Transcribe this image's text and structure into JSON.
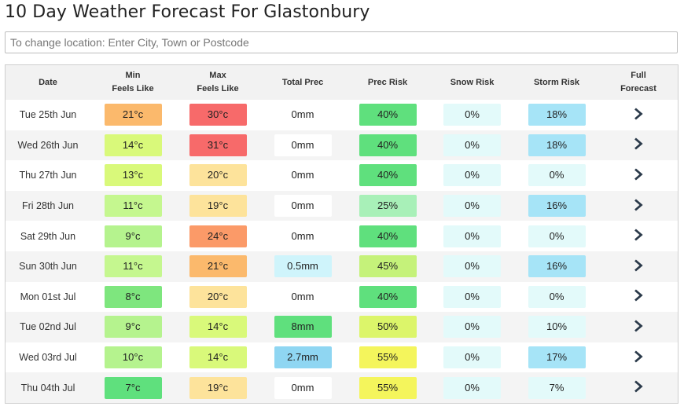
{
  "title": "10 Day Weather Forecast For Glastonbury",
  "search": {
    "placeholder": "To change location: Enter City, Town or Postcode"
  },
  "headers": {
    "date": "Date",
    "min_line1": "Min",
    "min_line2": "Feels Like",
    "max_line1": "Max",
    "max_line2": "Feels Like",
    "total_prec": "Total Prec",
    "prec_risk": "Prec Risk",
    "snow_risk": "Snow Risk",
    "storm_risk": "Storm Risk",
    "full_line1": "Full",
    "full_line2": "Forecast"
  },
  "rows": [
    {
      "date": "Tue 25th Jun",
      "min": "21°c",
      "min_color": "#fbb96c",
      "max": "30°c",
      "max_color": "#f76a6a",
      "prec": "0mm",
      "prec_color": "#ffffff",
      "prec_risk": "40%",
      "prec_risk_color": "#5fe07d",
      "snow": "0%",
      "snow_color": "#e3fafa",
      "storm": "18%",
      "storm_color": "#a6e4f7",
      "link_icon": "chevron-right-icon"
    },
    {
      "date": "Wed 26th Jun",
      "min": "14°c",
      "min_color": "#d9f97a",
      "max": "31°c",
      "max_color": "#f76a6a",
      "prec": "0mm",
      "prec_color": "#ffffff",
      "prec_risk": "40%",
      "prec_risk_color": "#5fe07d",
      "snow": "0%",
      "snow_color": "#e3fafa",
      "storm": "18%",
      "storm_color": "#a6e4f7",
      "link_icon": "chevron-right-icon"
    },
    {
      "date": "Thu 27th Jun",
      "min": "13°c",
      "min_color": "#d9f97a",
      "max": "20°c",
      "max_color": "#fde39b",
      "prec": "0mm",
      "prec_color": "#ffffff",
      "prec_risk": "40%",
      "prec_risk_color": "#5fe07d",
      "snow": "0%",
      "snow_color": "#e3fafa",
      "storm": "0%",
      "storm_color": "#e3fafa",
      "link_icon": "chevron-right-icon"
    },
    {
      "date": "Fri 28th Jun",
      "min": "11°c",
      "min_color": "#c5f78f",
      "max": "19°c",
      "max_color": "#fde39b",
      "prec": "0mm",
      "prec_color": "#ffffff",
      "prec_risk": "25%",
      "prec_risk_color": "#a8f0b8",
      "snow": "0%",
      "snow_color": "#e3fafa",
      "storm": "16%",
      "storm_color": "#a6e4f7",
      "link_icon": "chevron-right-icon"
    },
    {
      "date": "Sat 29th Jun",
      "min": "9°c",
      "min_color": "#b5f38e",
      "max": "24°c",
      "max_color": "#fb9a68",
      "prec": "0mm",
      "prec_color": "#ffffff",
      "prec_risk": "40%",
      "prec_risk_color": "#5fe07d",
      "snow": "0%",
      "snow_color": "#e3fafa",
      "storm": "0%",
      "storm_color": "#e3fafa",
      "link_icon": "chevron-right-icon"
    },
    {
      "date": "Sun 30th Jun",
      "min": "11°c",
      "min_color": "#c5f78f",
      "max": "21°c",
      "max_color": "#fbb96c",
      "prec": "0.5mm",
      "prec_color": "#cff4fb",
      "prec_risk": "45%",
      "prec_risk_color": "#c5f27a",
      "snow": "0%",
      "snow_color": "#e3fafa",
      "storm": "16%",
      "storm_color": "#a6e4f7",
      "link_icon": "chevron-right-icon"
    },
    {
      "date": "Mon 01st Jul",
      "min": "8°c",
      "min_color": "#7ee67e",
      "max": "20°c",
      "max_color": "#fde39b",
      "prec": "0mm",
      "prec_color": "#ffffff",
      "prec_risk": "40%",
      "prec_risk_color": "#5fe07d",
      "snow": "0%",
      "snow_color": "#e3fafa",
      "storm": "0%",
      "storm_color": "#e3fafa",
      "link_icon": "chevron-right-icon"
    },
    {
      "date": "Tue 02nd Jul",
      "min": "9°c",
      "min_color": "#b5f38e",
      "max": "14°c",
      "max_color": "#d9f97a",
      "prec": "8mm",
      "prec_color": "#5fe07d",
      "prec_risk": "50%",
      "prec_risk_color": "#dcf56a",
      "snow": "0%",
      "snow_color": "#e3fafa",
      "storm": "10%",
      "storm_color": "#e3fafa",
      "link_icon": "chevron-right-icon"
    },
    {
      "date": "Wed 03rd Jul",
      "min": "10°c",
      "min_color": "#b5f38e",
      "max": "14°c",
      "max_color": "#d9f97a",
      "prec": "2.7mm",
      "prec_color": "#8fd6f2",
      "prec_risk": "55%",
      "prec_risk_color": "#f4f55c",
      "snow": "0%",
      "snow_color": "#e3fafa",
      "storm": "17%",
      "storm_color": "#a6e4f7",
      "link_icon": "chevron-right-icon"
    },
    {
      "date": "Thu 04th Jul",
      "min": "7°c",
      "min_color": "#5fe07d",
      "max": "19°c",
      "max_color": "#fde39b",
      "prec": "0mm",
      "prec_color": "#ffffff",
      "prec_risk": "55%",
      "prec_risk_color": "#f4f55c",
      "snow": "0%",
      "snow_color": "#e3fafa",
      "storm": "7%",
      "storm_color": "#e3fafa",
      "link_icon": "chevron-right-icon"
    }
  ]
}
